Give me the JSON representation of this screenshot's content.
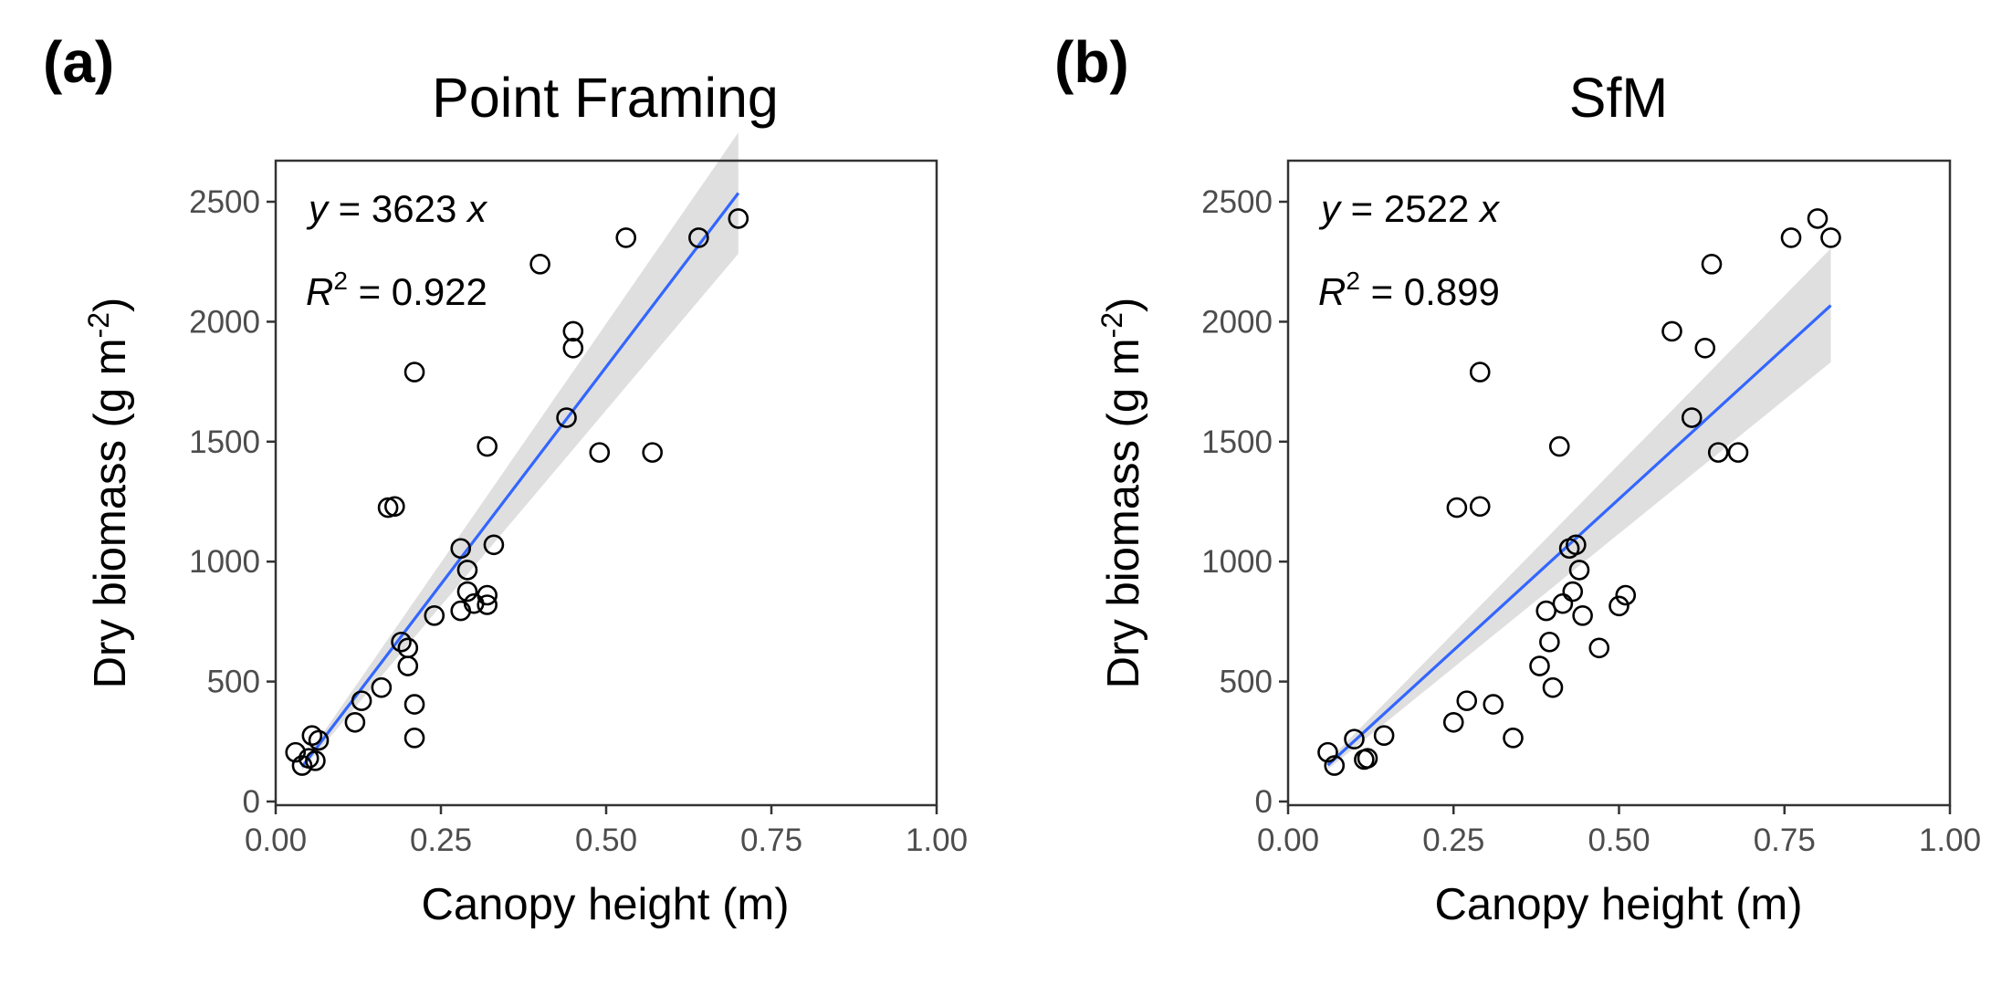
{
  "chart_data": [
    {
      "type": "scatter",
      "panel_label": "(a)",
      "title": "Point Framing",
      "xlabel": "Canopy height (m)",
      "ylabel": "Dry biomass (g m",
      "ylabel_sup": "-2",
      "ylabel_close": ")",
      "xlim": [
        0,
        1
      ],
      "ylim": [
        0,
        2680
      ],
      "xticks": [
        0,
        0.25,
        0.5,
        0.75,
        1
      ],
      "xtick_labels": [
        "0.00",
        "0.25",
        "0.50",
        "0.75",
        "1.00"
      ],
      "yticks": [
        0,
        500,
        1000,
        1500,
        2000,
        2500
      ],
      "ytick_labels": [
        "0",
        "500",
        "1000",
        "1500",
        "2000",
        "2500"
      ],
      "equation": {
        "y": "y",
        "mid": " = 3623 ",
        "x": "x"
      },
      "r2": {
        "r": "R",
        "sup": "2",
        "rest": " = 0.922"
      },
      "fit": {
        "slope": 3623,
        "x_range": [
          0.04,
          0.7
        ]
      },
      "points": [
        {
          "x": 0.03,
          "y": 205
        },
        {
          "x": 0.04,
          "y": 150
        },
        {
          "x": 0.05,
          "y": 180
        },
        {
          "x": 0.055,
          "y": 275
        },
        {
          "x": 0.06,
          "y": 170
        },
        {
          "x": 0.065,
          "y": 255
        },
        {
          "x": 0.12,
          "y": 330
        },
        {
          "x": 0.13,
          "y": 420
        },
        {
          "x": 0.16,
          "y": 475
        },
        {
          "x": 0.17,
          "y": 1225
        },
        {
          "x": 0.18,
          "y": 1230
        },
        {
          "x": 0.19,
          "y": 665
        },
        {
          "x": 0.2,
          "y": 640
        },
        {
          "x": 0.2,
          "y": 565
        },
        {
          "x": 0.21,
          "y": 1790
        },
        {
          "x": 0.21,
          "y": 405
        },
        {
          "x": 0.21,
          "y": 265
        },
        {
          "x": 0.24,
          "y": 775
        },
        {
          "x": 0.28,
          "y": 1055
        },
        {
          "x": 0.28,
          "y": 795
        },
        {
          "x": 0.29,
          "y": 965
        },
        {
          "x": 0.29,
          "y": 875
        },
        {
          "x": 0.3,
          "y": 825
        },
        {
          "x": 0.32,
          "y": 1480
        },
        {
          "x": 0.32,
          "y": 860
        },
        {
          "x": 0.32,
          "y": 820
        },
        {
          "x": 0.33,
          "y": 1070
        },
        {
          "x": 0.4,
          "y": 2240
        },
        {
          "x": 0.44,
          "y": 1600
        },
        {
          "x": 0.45,
          "y": 1960
        },
        {
          "x": 0.45,
          "y": 1890
        },
        {
          "x": 0.49,
          "y": 1455
        },
        {
          "x": 0.53,
          "y": 2350
        },
        {
          "x": 0.57,
          "y": 1455
        },
        {
          "x": 0.64,
          "y": 2350
        },
        {
          "x": 0.7,
          "y": 2430
        }
      ]
    },
    {
      "type": "scatter",
      "panel_label": "(b)",
      "title": "SfM",
      "xlabel": "Canopy height (m)",
      "ylabel": "Dry biomass (g m",
      "ylabel_sup": "-2",
      "ylabel_close": ")",
      "xlim": [
        0,
        1
      ],
      "ylim": [
        0,
        2680
      ],
      "xticks": [
        0,
        0.25,
        0.5,
        0.75,
        1
      ],
      "xtick_labels": [
        "0.00",
        "0.25",
        "0.50",
        "0.75",
        "1.00"
      ],
      "yticks": [
        0,
        500,
        1000,
        1500,
        2000,
        2500
      ],
      "ytick_labels": [
        "0",
        "500",
        "1000",
        "1500",
        "2000",
        "2500"
      ],
      "equation": {
        "y": "y",
        "mid": " = 2522 ",
        "x": "x"
      },
      "r2": {
        "r": "R",
        "sup": "2",
        "rest": " = 0.899"
      },
      "fit": {
        "slope": 2522,
        "x_range": [
          0.06,
          0.82
        ]
      },
      "points": [
        {
          "x": 0.06,
          "y": 205
        },
        {
          "x": 0.07,
          "y": 150
        },
        {
          "x": 0.1,
          "y": 260
        },
        {
          "x": 0.115,
          "y": 175
        },
        {
          "x": 0.12,
          "y": 180
        },
        {
          "x": 0.145,
          "y": 275
        },
        {
          "x": 0.25,
          "y": 330
        },
        {
          "x": 0.255,
          "y": 1225
        },
        {
          "x": 0.27,
          "y": 420
        },
        {
          "x": 0.29,
          "y": 1790
        },
        {
          "x": 0.29,
          "y": 1230
        },
        {
          "x": 0.31,
          "y": 405
        },
        {
          "x": 0.34,
          "y": 265
        },
        {
          "x": 0.38,
          "y": 565
        },
        {
          "x": 0.39,
          "y": 795
        },
        {
          "x": 0.395,
          "y": 665
        },
        {
          "x": 0.4,
          "y": 475
        },
        {
          "x": 0.41,
          "y": 1480
        },
        {
          "x": 0.415,
          "y": 825
        },
        {
          "x": 0.425,
          "y": 1055
        },
        {
          "x": 0.43,
          "y": 875
        },
        {
          "x": 0.435,
          "y": 1070
        },
        {
          "x": 0.44,
          "y": 965
        },
        {
          "x": 0.445,
          "y": 775
        },
        {
          "x": 0.47,
          "y": 640
        },
        {
          "x": 0.5,
          "y": 815
        },
        {
          "x": 0.51,
          "y": 860
        },
        {
          "x": 0.58,
          "y": 1960
        },
        {
          "x": 0.61,
          "y": 1600
        },
        {
          "x": 0.63,
          "y": 1890
        },
        {
          "x": 0.64,
          "y": 2240
        },
        {
          "x": 0.65,
          "y": 1455
        },
        {
          "x": 0.68,
          "y": 1455
        },
        {
          "x": 0.76,
          "y": 2350
        },
        {
          "x": 0.8,
          "y": 2430
        },
        {
          "x": 0.82,
          "y": 2350
        }
      ]
    }
  ],
  "colors": {
    "fit_line": "#3366ff",
    "confidence_band": "#d9d9d9",
    "point_stroke": "#000000",
    "axis": "#333333",
    "tick_label": "#4d4d4d"
  }
}
